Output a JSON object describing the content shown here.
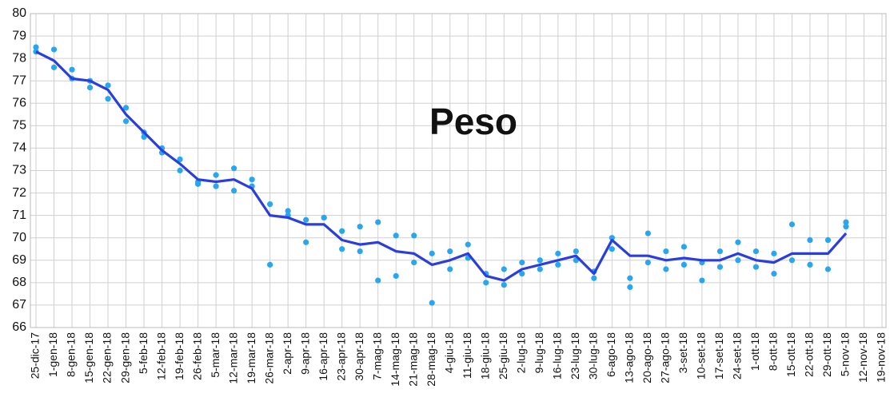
{
  "chart_data": {
    "type": "line",
    "title": "Peso",
    "categories": [
      "25-dic-17",
      "1-gen-18",
      "8-gen-18",
      "15-gen-18",
      "22-gen-18",
      "29-gen-18",
      "5-feb-18",
      "12-feb-18",
      "19-feb-18",
      "26-feb-18",
      "5-mar-18",
      "12-mar-18",
      "19-mar-18",
      "26-mar-18",
      "2-apr-18",
      "9-apr-18",
      "16-apr-18",
      "23-apr-18",
      "30-apr-18",
      "7-mag-18",
      "14-mag-18",
      "21-mag-18",
      "28-mag-18",
      "4-giu-18",
      "11-giu-18",
      "18-giu-18",
      "25-giu-18",
      "2-lug-18",
      "9-lug-18",
      "16-lug-18",
      "23-lug-18",
      "30-lug-18",
      "6-ago-18",
      "13-ago-18",
      "20-ago-18",
      "27-ago-18",
      "3-set-18",
      "10-set-18",
      "17-set-18",
      "24-set-18",
      "1-ott-18",
      "8-ott-18",
      "15-ott-18",
      "22-ott-18",
      "29-ott-18",
      "5-nov-18",
      "12-nov-18",
      "19-nov-18"
    ],
    "series": [
      {
        "type": "scatter",
        "color": "#2aa6ef",
        "values": [
          78.5,
          77.6,
          77.5,
          77.0,
          76.8,
          75.8,
          74.5,
          73.8,
          73.5,
          72.4,
          72.8,
          73.1,
          72.6,
          71.5,
          71.2,
          70.8,
          70.9,
          70.3,
          70.5,
          70.7,
          70.1,
          70.1,
          69.3,
          69.4,
          69.7,
          68.0,
          68.6,
          68.9,
          69.0,
          69.3,
          69.4,
          68.2,
          70.0,
          68.2,
          70.2,
          69.4,
          69.6,
          68.1,
          69.4,
          69.8,
          69.4,
          69.3,
          70.6,
          69.9,
          69.9,
          70.7,
          null,
          null
        ]
      },
      {
        "type": "scatter",
        "color": "#2aa6ef",
        "values": [
          78.3,
          78.4,
          77.1,
          76.7,
          76.2,
          75.2,
          74.7,
          74.0,
          73.0,
          72.5,
          72.3,
          72.1,
          72.3,
          68.8,
          71.0,
          69.8,
          70.9,
          69.5,
          69.4,
          68.1,
          68.3,
          68.9,
          67.1,
          68.6,
          69.1,
          68.4,
          67.9,
          68.4,
          68.6,
          68.8,
          69.0,
          68.5,
          69.5,
          67.8,
          68.9,
          68.6,
          68.8,
          68.9,
          68.7,
          69.0,
          68.7,
          68.4,
          69.0,
          68.8,
          68.6,
          70.5,
          null,
          null
        ]
      },
      {
        "type": "line",
        "color": "#2a3ee0",
        "values": [
          78.3,
          77.9,
          77.1,
          77.0,
          76.6,
          75.5,
          74.7,
          73.9,
          73.3,
          72.6,
          72.5,
          72.6,
          72.2,
          71.0,
          70.9,
          70.6,
          70.6,
          69.9,
          69.7,
          69.8,
          69.4,
          69.3,
          68.8,
          69.0,
          69.3,
          68.3,
          68.1,
          68.6,
          68.8,
          69.0,
          69.2,
          68.4,
          69.9,
          69.2,
          69.2,
          69.0,
          69.1,
          69.0,
          69.0,
          69.3,
          69.0,
          68.9,
          69.3,
          69.3,
          69.3,
          70.2,
          null,
          null
        ]
      }
    ],
    "ylim": [
      66,
      80
    ],
    "yticks": [
      66,
      67,
      68,
      69,
      70,
      71,
      72,
      73,
      74,
      75,
      76,
      77,
      78,
      79,
      80
    ],
    "grid": true
  }
}
